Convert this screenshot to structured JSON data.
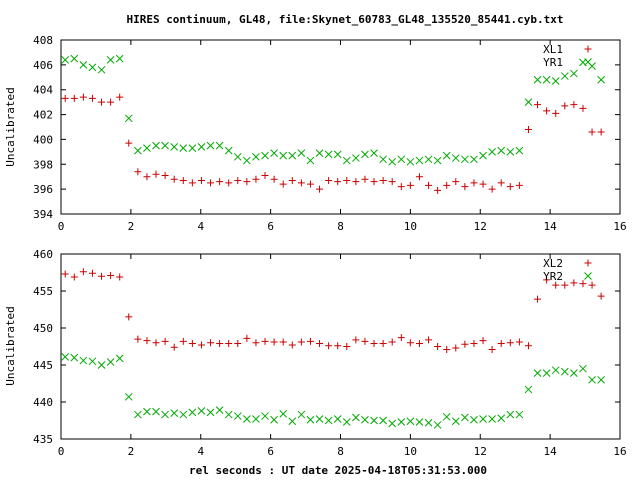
{
  "title": "HIRES continuum, GL48, file:Skynet_60783_GL48_135520_85441.cyb.txt",
  "xlabel": "rel seconds : UT date 2025-04-18T05:31:53.000",
  "colors": {
    "series_a": "#cc0000",
    "series_b": "#00aa00",
    "axis": "#000000"
  },
  "chart_data": [
    {
      "type": "scatter",
      "ylabel": "Uncalibrated",
      "xlim": [
        0,
        16
      ],
      "ylim": [
        394,
        408
      ],
      "xticks": [
        "0",
        "2",
        "4",
        "6",
        "8",
        "10",
        "12",
        "14",
        "16"
      ],
      "yticks": [
        "394",
        "396",
        "398",
        "400",
        "402",
        "404",
        "406",
        "408"
      ],
      "x": [
        0.12,
        0.38,
        0.64,
        0.9,
        1.16,
        1.42,
        1.68,
        1.94,
        2.2,
        2.46,
        2.72,
        2.98,
        3.24,
        3.5,
        3.76,
        4.02,
        4.28,
        4.54,
        4.8,
        5.06,
        5.32,
        5.58,
        5.84,
        6.1,
        6.36,
        6.62,
        6.88,
        7.14,
        7.4,
        7.66,
        7.92,
        8.18,
        8.44,
        8.7,
        8.96,
        9.22,
        9.48,
        9.74,
        10.0,
        10.26,
        10.52,
        10.78,
        11.04,
        11.3,
        11.56,
        11.82,
        12.08,
        12.34,
        12.6,
        12.86,
        13.12,
        13.38,
        13.64,
        13.9,
        14.16,
        14.42,
        14.68,
        14.94,
        15.2,
        15.46
      ],
      "series": [
        {
          "name": "XL1",
          "marker": "plus",
          "values": [
            403.3,
            403.3,
            403.4,
            403.3,
            403.0,
            403.0,
            403.4,
            399.7,
            397.4,
            397.0,
            397.2,
            397.1,
            396.8,
            396.7,
            396.5,
            396.7,
            396.5,
            396.6,
            396.5,
            396.7,
            396.6,
            396.8,
            397.1,
            396.8,
            396.4,
            396.7,
            396.5,
            396.4,
            396.0,
            396.7,
            396.6,
            396.7,
            396.6,
            396.8,
            396.6,
            396.7,
            396.6,
            396.2,
            396.3,
            397.0,
            396.3,
            395.9,
            396.3,
            396.6,
            396.2,
            396.5,
            396.4,
            396.0,
            396.5,
            396.2,
            396.3,
            400.8,
            402.8,
            402.3,
            402.1,
            402.7,
            402.8,
            402.5,
            400.6,
            400.6
          ],
          "visible_count": 60
        },
        {
          "name": "YR1",
          "marker": "cross",
          "values": [
            406.4,
            406.5,
            406.0,
            405.8,
            405.6,
            406.4,
            406.5,
            401.7,
            399.1,
            399.3,
            399.5,
            399.5,
            399.4,
            399.3,
            399.3,
            399.4,
            399.5,
            399.5,
            399.1,
            398.6,
            398.3,
            398.6,
            398.7,
            398.9,
            398.7,
            398.7,
            398.9,
            398.3,
            398.9,
            398.8,
            398.8,
            398.3,
            398.5,
            398.8,
            398.9,
            398.4,
            398.2,
            398.4,
            398.2,
            398.3,
            398.4,
            398.3,
            398.7,
            398.5,
            398.4,
            398.4,
            398.7,
            399.0,
            399.1,
            399.0,
            399.1,
            403.0,
            404.8,
            404.8,
            404.7,
            405.1,
            405.3,
            406.2,
            405.9,
            404.8
          ]
        }
      ]
    },
    {
      "type": "scatter",
      "ylabel": "Uncalibrated",
      "xlim": [
        0,
        16
      ],
      "ylim": [
        435,
        460
      ],
      "xticks": [
        "0",
        "2",
        "4",
        "6",
        "8",
        "10",
        "12",
        "14",
        "16"
      ],
      "yticks": [
        "435",
        "440",
        "445",
        "450",
        "455",
        "460"
      ],
      "x": [
        0.12,
        0.38,
        0.64,
        0.9,
        1.16,
        1.42,
        1.68,
        1.94,
        2.2,
        2.46,
        2.72,
        2.98,
        3.24,
        3.5,
        3.76,
        4.02,
        4.28,
        4.54,
        4.8,
        5.06,
        5.32,
        5.58,
        5.84,
        6.1,
        6.36,
        6.62,
        6.88,
        7.14,
        7.4,
        7.66,
        7.92,
        8.18,
        8.44,
        8.7,
        8.96,
        9.22,
        9.48,
        9.74,
        10.0,
        10.26,
        10.52,
        10.78,
        11.04,
        11.3,
        11.56,
        11.82,
        12.08,
        12.34,
        12.6,
        12.86,
        13.12,
        13.38,
        13.64,
        13.9,
        14.16,
        14.42,
        14.68,
        14.94,
        15.2,
        15.46
      ],
      "series": [
        {
          "name": "XL2",
          "marker": "plus",
          "values": [
            457.3,
            456.9,
            457.6,
            457.4,
            457.0,
            457.1,
            456.9,
            451.5,
            448.5,
            448.3,
            448.0,
            448.2,
            447.4,
            448.2,
            447.9,
            447.7,
            448.0,
            447.9,
            447.9,
            447.9,
            448.6,
            448.0,
            448.2,
            448.1,
            448.1,
            447.7,
            448.1,
            448.2,
            447.9,
            447.6,
            447.6,
            447.5,
            448.4,
            448.2,
            447.9,
            447.9,
            448.1,
            448.7,
            448.0,
            447.9,
            448.4,
            447.5,
            447.1,
            447.3,
            447.8,
            447.9,
            448.3,
            447.1,
            447.9,
            448.0,
            448.1,
            447.6,
            453.9,
            456.5,
            455.8,
            455.8,
            456.1,
            456.0,
            455.8,
            454.3
          ]
        },
        {
          "name": "YR2",
          "marker": "cross",
          "values": [
            446.1,
            446.0,
            445.6,
            445.5,
            445.0,
            445.4,
            445.9,
            440.7,
            438.3,
            438.7,
            438.7,
            438.3,
            438.5,
            438.3,
            438.6,
            438.8,
            438.6,
            438.9,
            438.3,
            438.1,
            437.7,
            437.7,
            438.1,
            437.6,
            438.4,
            437.4,
            438.3,
            437.6,
            437.7,
            437.5,
            437.7,
            437.3,
            437.9,
            437.6,
            437.5,
            437.5,
            437.1,
            437.3,
            437.4,
            437.3,
            437.2,
            436.9,
            438.0,
            437.4,
            437.9,
            437.6,
            437.7,
            437.7,
            437.8,
            438.3,
            438.3,
            441.7,
            443.9,
            443.9,
            444.3,
            444.1,
            443.9,
            444.5,
            443.0,
            443.0
          ]
        }
      ]
    }
  ]
}
